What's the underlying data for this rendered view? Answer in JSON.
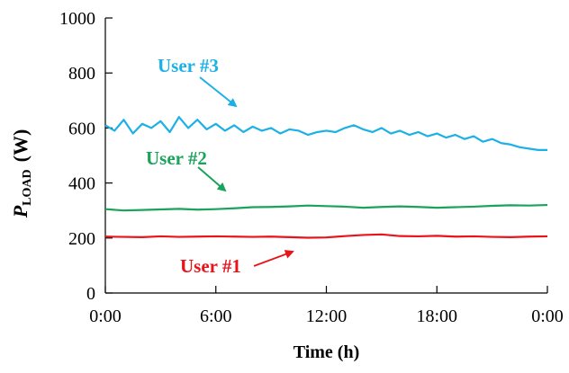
{
  "chart_data": {
    "type": "line",
    "xlabel": "Time (h)",
    "ylabel": {
      "main": "P",
      "sub": "LOAD",
      "unit": "(W)"
    },
    "xlim": [
      0,
      24
    ],
    "ylim": [
      0,
      1000
    ],
    "x_tick_values": [
      0,
      6,
      12,
      18,
      24
    ],
    "x_tick_labels": [
      "0:00",
      "6:00",
      "12:00",
      "18:00",
      "0:00"
    ],
    "y_tick_values": [
      0,
      200,
      400,
      600,
      800,
      1000
    ],
    "y_tick_labels": [
      "0",
      "200",
      "400",
      "600",
      "800",
      "1000"
    ],
    "grid": false,
    "series": [
      {
        "name": "User #1",
        "color": "#e8141a",
        "x": [
          0,
          1,
          2,
          3,
          4,
          5,
          6,
          7,
          8,
          9,
          10,
          11,
          12,
          13,
          14,
          15,
          16,
          17,
          18,
          19,
          20,
          21,
          22,
          23,
          24
        ],
        "y": [
          205,
          204,
          203,
          206,
          204,
          205,
          206,
          205,
          204,
          205,
          203,
          201,
          202,
          207,
          211,
          213,
          207,
          206,
          208,
          205,
          206,
          204,
          203,
          205,
          206
        ]
      },
      {
        "name": "User #2",
        "color": "#1aa35a",
        "x": [
          0,
          1,
          2,
          3,
          4,
          5,
          6,
          7,
          8,
          9,
          10,
          11,
          12,
          13,
          14,
          15,
          16,
          17,
          18,
          19,
          20,
          21,
          22,
          23,
          24
        ],
        "y": [
          305,
          300,
          302,
          304,
          306,
          303,
          305,
          308,
          312,
          313,
          315,
          318,
          316,
          314,
          310,
          313,
          315,
          313,
          310,
          312,
          314,
          317,
          319,
          318,
          320
        ]
      },
      {
        "name": "User #3",
        "color": "#1cb1e6",
        "x": [
          0,
          0.5,
          1,
          1.5,
          2,
          2.5,
          3,
          3.5,
          4,
          4.5,
          5,
          5.5,
          6,
          6.5,
          7,
          7.5,
          8,
          8.5,
          9,
          9.5,
          10,
          10.5,
          11,
          11.5,
          12,
          12.5,
          13,
          13.5,
          14,
          14.5,
          15,
          15.5,
          16,
          16.5,
          17,
          17.5,
          18,
          18.5,
          19,
          19.5,
          20,
          20.5,
          21,
          21.5,
          22,
          22.5,
          23,
          23.5,
          24
        ],
        "y": [
          610,
          590,
          630,
          580,
          615,
          600,
          625,
          585,
          640,
          600,
          630,
          595,
          615,
          590,
          610,
          585,
          605,
          590,
          600,
          580,
          595,
          590,
          575,
          585,
          590,
          585,
          600,
          610,
          595,
          585,
          600,
          580,
          590,
          575,
          585,
          570,
          580,
          565,
          575,
          560,
          570,
          550,
          560,
          545,
          540,
          530,
          525,
          520,
          520
        ]
      }
    ],
    "annotations": [
      {
        "text": "User #3",
        "series": 2
      },
      {
        "text": "User #2",
        "series": 1
      },
      {
        "text": "User #1",
        "series": 0
      }
    ]
  }
}
